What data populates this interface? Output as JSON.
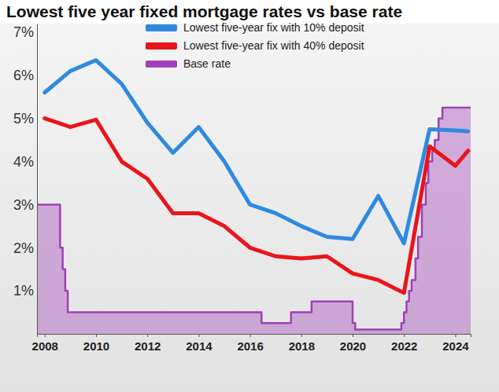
{
  "chart_data": {
    "type": "line",
    "title": "Lowest five year fixed mortgage rates vs base rate",
    "xlim": [
      2007.7,
      2024.6
    ],
    "xticks": [
      2008,
      2010,
      2012,
      2014,
      2016,
      2018,
      2020,
      2022,
      2024
    ],
    "ylim": [
      0,
      7.2
    ],
    "yticks": [
      {
        "value": 1,
        "label": "1%"
      },
      {
        "value": 2,
        "label": "2%"
      },
      {
        "value": 3,
        "label": "3%"
      },
      {
        "value": 4,
        "label": "4%"
      },
      {
        "value": 5,
        "label": "5%"
      },
      {
        "value": 6,
        "label": "6%"
      },
      {
        "value": 7,
        "label": "7%"
      }
    ],
    "series": [
      {
        "name": "Lowest five-year fix with 10% deposit",
        "color": "#2f8ae0",
        "x": [
          2008,
          2009,
          2010,
          2011,
          2012,
          2013,
          2014,
          2015,
          2016,
          2017,
          2018,
          2019,
          2020,
          2021,
          2022,
          2023,
          2024,
          2024.5
        ],
        "values": [
          5.6,
          6.1,
          6.35,
          5.8,
          4.9,
          4.2,
          4.8,
          4.0,
          3.0,
          2.8,
          2.5,
          2.25,
          2.2,
          3.2,
          2.1,
          4.75,
          4.72,
          4.7
        ]
      },
      {
        "name": "Lowest five-year fix with 40% deposit",
        "color": "#e8151b",
        "x": [
          2008,
          2009,
          2010,
          2011,
          2012,
          2013,
          2014,
          2015,
          2016,
          2017,
          2018,
          2019,
          2020,
          2021,
          2022,
          2023,
          2024,
          2024.5
        ],
        "values": [
          5.0,
          4.8,
          4.97,
          4.0,
          3.6,
          2.8,
          2.8,
          2.5,
          2.0,
          1.8,
          1.75,
          1.8,
          1.4,
          1.25,
          0.95,
          4.35,
          3.9,
          4.25
        ]
      },
      {
        "name": "Base rate",
        "color": "#a040b8",
        "type": "area",
        "line_style": "step",
        "x": [
          2007.7,
          2008.6,
          2008.7,
          2008.8,
          2008.9,
          2016.45,
          2017.6,
          2018.4,
          2020.0,
          2020.1,
          2021.9,
          2022.0,
          2022.1,
          2022.2,
          2022.3,
          2022.45,
          2022.55,
          2022.7,
          2022.85,
          2022.95,
          2023.1,
          2023.2,
          2023.35,
          2023.5,
          2024.6
        ],
        "values": [
          3.0,
          2.0,
          1.5,
          1.0,
          0.5,
          0.25,
          0.5,
          0.75,
          0.25,
          0.1,
          0.25,
          0.5,
          0.75,
          1.0,
          1.25,
          1.75,
          2.25,
          3.0,
          3.5,
          4.0,
          4.25,
          4.5,
          5.0,
          5.25,
          5.25
        ]
      }
    ]
  }
}
